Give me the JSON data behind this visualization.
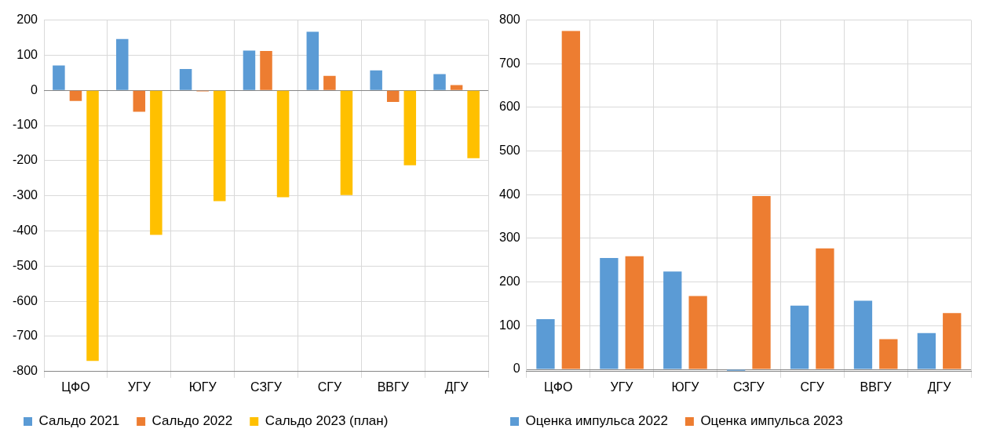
{
  "chart_data": [
    {
      "type": "bar",
      "categories": [
        "ЦФО",
        "УГУ",
        "ЮГУ",
        "СЗГУ",
        "СГУ",
        "ВВГУ",
        "ДГУ"
      ],
      "series": [
        {
          "name": "Сальдо 2021",
          "color": "#5b9bd5",
          "values": [
            71,
            146,
            61,
            113,
            167,
            57,
            46
          ]
        },
        {
          "name": "Сальдо 2022",
          "color": "#ed7d31",
          "values": [
            -30,
            -61,
            -3,
            112,
            41,
            -33,
            15
          ]
        },
        {
          "name": "Сальдо 2023 (план)",
          "color": "#ffc000",
          "values": [
            -770,
            -411,
            -315,
            -304,
            -298,
            -213,
            -193
          ]
        }
      ],
      "ylim": [
        -800,
        200
      ],
      "yticks": [
        -800,
        -700,
        -600,
        -500,
        -400,
        -300,
        -200,
        -100,
        0,
        100,
        200
      ],
      "grid": true,
      "legend": "bottom"
    },
    {
      "type": "bar",
      "categories": [
        "ЦФО",
        "УГУ",
        "ЮГУ",
        "СЗГУ",
        "СГУ",
        "ВВГУ",
        "ДГУ"
      ],
      "series": [
        {
          "name": "Оценка импульса 2022",
          "color": "#5b9bd5",
          "values": [
            115,
            255,
            224,
            -3,
            146,
            157,
            83
          ]
        },
        {
          "name": "Оценка импульса 2023",
          "color": "#ed7d31",
          "values": [
            775,
            259,
            168,
            397,
            277,
            69,
            129
          ]
        }
      ],
      "ylim": [
        -5,
        800
      ],
      "yticks": [
        0,
        100,
        200,
        300,
        400,
        500,
        600,
        700,
        800
      ],
      "grid": true,
      "legend": "bottom"
    }
  ]
}
